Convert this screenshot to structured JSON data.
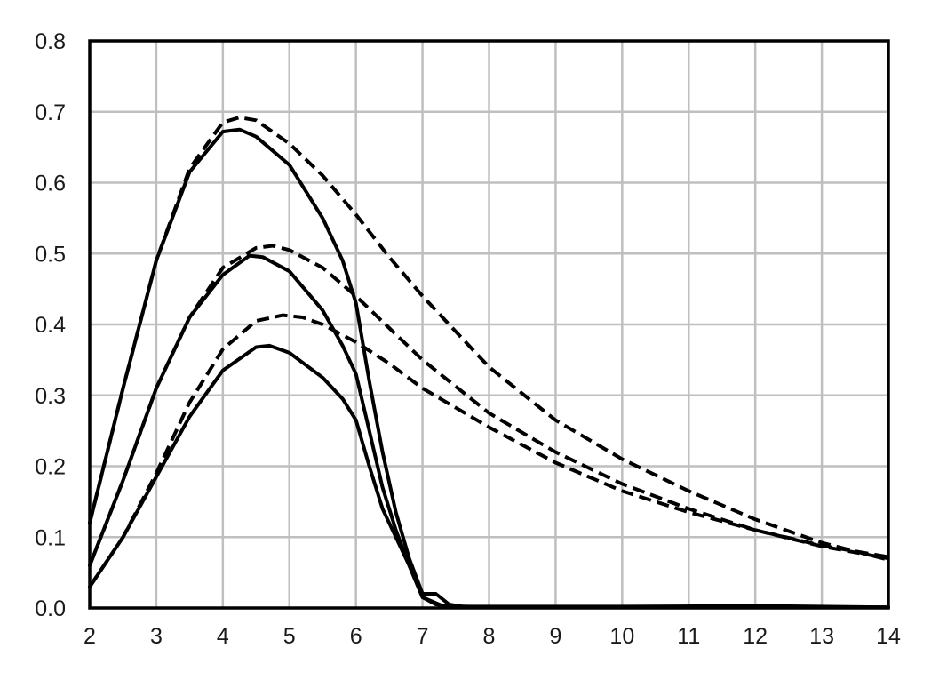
{
  "chart_data": {
    "type": "line",
    "title": "",
    "xlabel": "",
    "ylabel": "",
    "xlim": [
      2,
      14
    ],
    "ylim": [
      0,
      0.8
    ],
    "x_ticks": [
      2,
      3,
      4,
      5,
      6,
      7,
      8,
      9,
      10,
      11,
      12,
      13,
      14
    ],
    "y_ticks": [
      0.0,
      0.1,
      0.2,
      0.3,
      0.4,
      0.5,
      0.6,
      0.7,
      0.8
    ],
    "y_tick_labels": [
      "0.0",
      "0.1",
      "0.2",
      "0.3",
      "0.4",
      "0.5",
      "0.6",
      "0.7",
      "0.8"
    ],
    "x_tick_labels": [
      "2",
      "3",
      "4",
      "5",
      "6",
      "7",
      "8",
      "9",
      "10",
      "11",
      "12",
      "13",
      "14"
    ],
    "grid": true,
    "legend": "none",
    "line_color": "#000000",
    "grid_color": "#bfbfbf",
    "series": [
      {
        "style": "dashed",
        "points": [
          [
            2,
            0.12
          ],
          [
            2.5,
            0.31
          ],
          [
            3,
            0.49
          ],
          [
            3.5,
            0.62
          ],
          [
            4,
            0.685
          ],
          [
            4.25,
            0.692
          ],
          [
            4.5,
            0.688
          ],
          [
            5,
            0.655
          ],
          [
            5.5,
            0.61
          ],
          [
            6,
            0.555
          ],
          [
            6.5,
            0.495
          ],
          [
            7,
            0.44
          ],
          [
            8,
            0.34
          ],
          [
            9,
            0.265
          ],
          [
            10,
            0.21
          ],
          [
            11,
            0.165
          ],
          [
            12,
            0.125
          ],
          [
            13,
            0.092
          ],
          [
            14,
            0.068
          ]
        ]
      },
      {
        "style": "solid",
        "points": [
          [
            2,
            0.12
          ],
          [
            2.5,
            0.31
          ],
          [
            3,
            0.49
          ],
          [
            3.5,
            0.615
          ],
          [
            4,
            0.672
          ],
          [
            4.25,
            0.675
          ],
          [
            4.5,
            0.665
          ],
          [
            5,
            0.625
          ],
          [
            5.5,
            0.55
          ],
          [
            5.8,
            0.49
          ],
          [
            6,
            0.43
          ],
          [
            6.2,
            0.32
          ],
          [
            6.4,
            0.22
          ],
          [
            6.6,
            0.135
          ],
          [
            6.8,
            0.07
          ],
          [
            7,
            0.02
          ],
          [
            7.2,
            0.02
          ],
          [
            7.4,
            0.005
          ],
          [
            7.6,
            0.002
          ],
          [
            8,
            0.002
          ],
          [
            10,
            0.002
          ],
          [
            12,
            0.003
          ],
          [
            14,
            0.001
          ]
        ]
      },
      {
        "style": "dashed",
        "points": [
          [
            2,
            0.06
          ],
          [
            2.5,
            0.18
          ],
          [
            3,
            0.31
          ],
          [
            3.5,
            0.41
          ],
          [
            4,
            0.48
          ],
          [
            4.5,
            0.508
          ],
          [
            4.75,
            0.511
          ],
          [
            5,
            0.505
          ],
          [
            5.5,
            0.48
          ],
          [
            6,
            0.44
          ],
          [
            6.5,
            0.395
          ],
          [
            7,
            0.35
          ],
          [
            8,
            0.275
          ],
          [
            9,
            0.22
          ],
          [
            10,
            0.175
          ],
          [
            11,
            0.14
          ],
          [
            12,
            0.11
          ],
          [
            13,
            0.087
          ],
          [
            14,
            0.07
          ]
        ]
      },
      {
        "style": "solid",
        "points": [
          [
            2,
            0.06
          ],
          [
            2.5,
            0.18
          ],
          [
            3,
            0.31
          ],
          [
            3.5,
            0.41
          ],
          [
            4,
            0.47
          ],
          [
            4.4,
            0.497
          ],
          [
            4.6,
            0.495
          ],
          [
            5,
            0.475
          ],
          [
            5.5,
            0.42
          ],
          [
            5.8,
            0.37
          ],
          [
            6,
            0.33
          ],
          [
            6.2,
            0.25
          ],
          [
            6.4,
            0.17
          ],
          [
            6.6,
            0.11
          ],
          [
            6.8,
            0.06
          ],
          [
            7,
            0.015
          ],
          [
            7.2,
            0.005
          ],
          [
            7.5,
            0.001
          ],
          [
            10,
            0.001
          ],
          [
            14,
            0.001
          ]
        ]
      },
      {
        "style": "dashed",
        "points": [
          [
            2,
            0.03
          ],
          [
            2.5,
            0.1
          ],
          [
            3,
            0.19
          ],
          [
            3.5,
            0.29
          ],
          [
            4,
            0.365
          ],
          [
            4.5,
            0.405
          ],
          [
            4.9,
            0.413
          ],
          [
            5.2,
            0.41
          ],
          [
            5.5,
            0.4
          ],
          [
            6,
            0.375
          ],
          [
            6.5,
            0.345
          ],
          [
            7,
            0.31
          ],
          [
            8,
            0.255
          ],
          [
            9,
            0.205
          ],
          [
            10,
            0.165
          ],
          [
            11,
            0.135
          ],
          [
            12,
            0.11
          ],
          [
            13,
            0.088
          ],
          [
            14,
            0.072
          ]
        ]
      },
      {
        "style": "solid",
        "points": [
          [
            2,
            0.03
          ],
          [
            2.5,
            0.1
          ],
          [
            3,
            0.185
          ],
          [
            3.5,
            0.27
          ],
          [
            4,
            0.335
          ],
          [
            4.5,
            0.368
          ],
          [
            4.7,
            0.37
          ],
          [
            5,
            0.36
          ],
          [
            5.5,
            0.325
          ],
          [
            5.8,
            0.295
          ],
          [
            6,
            0.265
          ],
          [
            6.2,
            0.2
          ],
          [
            6.4,
            0.14
          ],
          [
            6.6,
            0.1
          ],
          [
            6.8,
            0.06
          ],
          [
            7,
            0.015
          ],
          [
            7.3,
            0.003
          ],
          [
            8,
            0.001
          ],
          [
            14,
            0.001
          ]
        ]
      }
    ]
  }
}
